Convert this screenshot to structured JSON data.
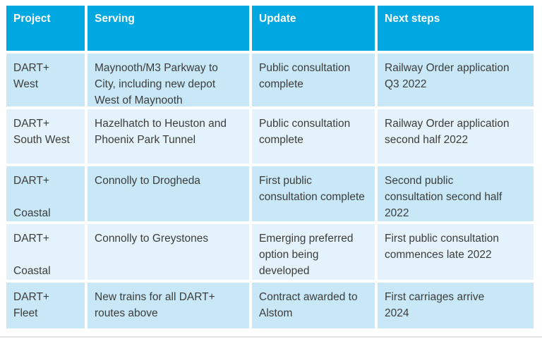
{
  "table": {
    "colors": {
      "header_bg": "#00a8e1",
      "header_text": "#ffffff",
      "row_dark": "#c9e8f7",
      "row_light": "#e4f3fb",
      "body_text": "#3c3c3b",
      "rule_color": "#e2e2e2"
    },
    "columns": [
      "Project",
      "Serving",
      "Update",
      "Next steps"
    ],
    "rows": [
      {
        "project": "DART+\nWest",
        "serving": "Maynooth/M3 Parkway to\nCity, including new depot\nWest of Maynooth",
        "update": "Public consultation\ncomplete",
        "next_steps": "Railway Order application\nQ3 2022"
      },
      {
        "project": "DART+\nSouth West",
        "serving": "Hazelhatch to Heuston and\nPhoenix Park Tunnel",
        "update": "Public consultation\ncomplete",
        "next_steps": "Railway Order application\nsecond half 2022"
      },
      {
        "project": "DART+\n\nCoastal",
        "serving": "Connolly to Drogheda",
        "update": "First public\nconsultation complete",
        "next_steps": "Second public\nconsultation second half\n2022"
      },
      {
        "project": "DART+\n\nCoastal",
        "serving": "Connolly to Greystones",
        "update": "Emerging preferred\noption being\ndeveloped",
        "next_steps": "First public consultation\ncommences late 2022"
      },
      {
        "project": "DART+\nFleet",
        "serving": "New trains for all DART+\nroutes above",
        "update": "Contract awarded to\nAlstom",
        "next_steps": "First carriages arrive\n2024"
      }
    ]
  }
}
